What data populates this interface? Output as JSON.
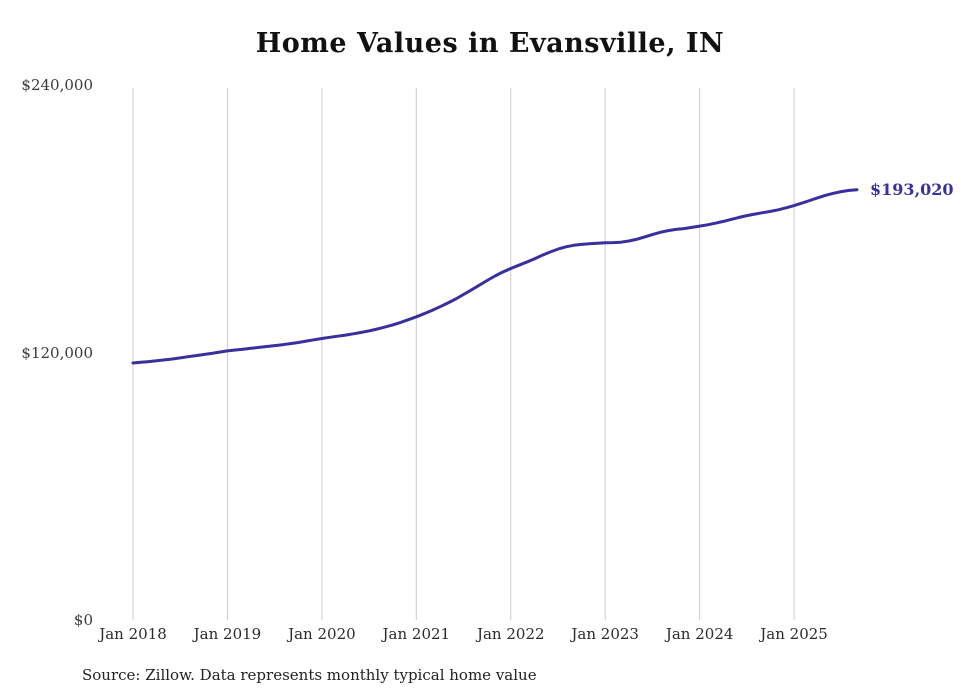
{
  "chart": {
    "title": "Home Values in Evansville, IN",
    "source": "Source: Zillow. Data represents monthly typical home value",
    "end_label": "$193,020",
    "accent_color": "#38309e",
    "grid_color": "#cccccc"
  },
  "chart_data": {
    "type": "line",
    "title": "Home Values in Evansville, IN",
    "x": {
      "start": "2018-01",
      "end": "2025-09",
      "interval": "month"
    },
    "x_tick_labels": [
      "Jan 2018",
      "Jan 2019",
      "Jan 2020",
      "Jan 2021",
      "Jan 2022",
      "Jan 2023",
      "Jan 2024",
      "Jan 2025"
    ],
    "y_ticks": [
      {
        "label": "$0",
        "value": 0
      },
      {
        "label": "$120,000",
        "value": 120000
      },
      {
        "label": "$240,000",
        "value": 240000
      }
    ],
    "ylim": [
      0,
      240000
    ],
    "grid": "vertical-only",
    "legend": "none",
    "end_value": 193020,
    "series": [
      {
        "name": "Typical home value",
        "values": [
          115300,
          115600,
          115900,
          116300,
          116700,
          117100,
          117600,
          118100,
          118600,
          119100,
          119600,
          120200,
          120700,
          121100,
          121500,
          121900,
          122300,
          122700,
          123100,
          123500,
          124000,
          124500,
          125100,
          125700,
          126300,
          126800,
          127300,
          127800,
          128400,
          129000,
          129700,
          130500,
          131400,
          132400,
          133500,
          134700,
          136000,
          137400,
          138900,
          140500,
          142200,
          144000,
          146000,
          148100,
          150200,
          152300,
          154300,
          156100,
          157700,
          159100,
          160500,
          162000,
          163600,
          165100,
          166400,
          167400,
          168100,
          168500,
          168800,
          169000,
          169200,
          169300,
          169500,
          170000,
          170800,
          171800,
          172900,
          173900,
          174700,
          175200,
          175600,
          176100,
          176700,
          177300,
          178000,
          178800,
          179700,
          180600,
          181400,
          182100,
          182700,
          183300,
          184000,
          184900,
          185900,
          187000,
          188200,
          189400,
          190500,
          191400,
          192200,
          192700,
          193020
        ]
      }
    ]
  }
}
